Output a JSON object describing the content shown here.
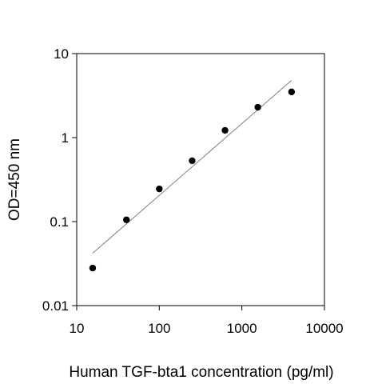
{
  "chart_data": {
    "type": "scatter",
    "title": "",
    "xlabel": "Human TGF-bta1 concentration (pg/ml)",
    "ylabel": "OD=450 nm",
    "x_scale": "log",
    "y_scale": "log",
    "xlim": [
      10,
      10000
    ],
    "ylim": [
      0.01,
      10
    ],
    "x_ticks": [
      "10",
      "100",
      "1000",
      "10000"
    ],
    "y_ticks": [
      "10",
      "1",
      "0.1",
      "0.01"
    ],
    "grid": false,
    "legend": "none",
    "series": [
      {
        "x": [
          15.6,
          40,
          100,
          250,
          625,
          1560,
          4000
        ],
        "y": [
          0.028,
          0.105,
          0.245,
          0.53,
          1.22,
          2.3,
          3.5
        ]
      }
    ],
    "trendline": {
      "x": [
        15.6,
        4000
      ],
      "y": [
        0.042,
        4.8
      ]
    },
    "colors": {
      "points": "#000000",
      "trendline": "#808080",
      "axes": "#000000"
    }
  }
}
